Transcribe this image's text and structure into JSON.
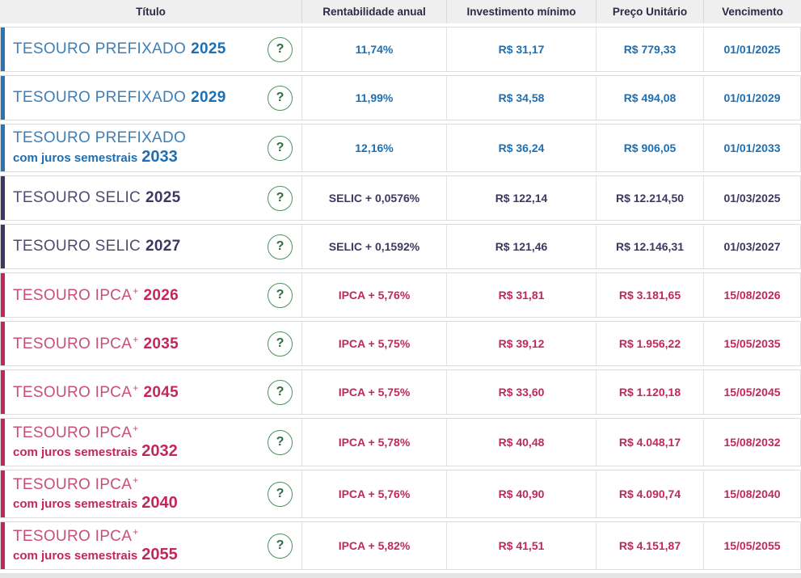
{
  "colors": {
    "prefixado": {
      "bar": "#2b74b4",
      "name": "#3c7fb9",
      "strong": "#1d6fb4"
    },
    "selic": {
      "bar": "#3d3862",
      "name": "#514b73",
      "strong": "#3d3862"
    },
    "ipca": {
      "bar": "#c2275c",
      "name": "#c94f77",
      "strong": "#c2275c"
    },
    "help_border": "#4f9060",
    "help_text": "#2c6e3f",
    "header_bg": "#efefef",
    "header_text": "#2b2b45"
  },
  "table": {
    "columns": [
      "Título",
      "Rentabilidade anual",
      "Investimento mínimo",
      "Preço Unitário",
      "Vencimento"
    ],
    "help_icon": "?",
    "rows": [
      {
        "family": "prefixado",
        "name": "TESOURO PREFIXADO",
        "sup": "",
        "subtitle": "",
        "year": "2025",
        "rate": "11,74%",
        "min_investment": "R$ 31,17",
        "unit_price": "R$ 779,33",
        "maturity": "01/01/2025"
      },
      {
        "family": "prefixado",
        "name": "TESOURO PREFIXADO",
        "sup": "",
        "subtitle": "",
        "year": "2029",
        "rate": "11,99%",
        "min_investment": "R$ 34,58",
        "unit_price": "R$ 494,08",
        "maturity": "01/01/2029"
      },
      {
        "family": "prefixado",
        "name": "TESOURO PREFIXADO",
        "sup": "",
        "subtitle": "com juros semestrais",
        "year": "2033",
        "rate": "12,16%",
        "min_investment": "R$ 36,24",
        "unit_price": "R$ 906,05",
        "maturity": "01/01/2033"
      },
      {
        "family": "selic",
        "name": "TESOURO SELIC",
        "sup": "",
        "subtitle": "",
        "year": "2025",
        "rate": "SELIC + 0,0576%",
        "min_investment": "R$ 122,14",
        "unit_price": "R$ 12.214,50",
        "maturity": "01/03/2025"
      },
      {
        "family": "selic",
        "name": "TESOURO SELIC",
        "sup": "",
        "subtitle": "",
        "year": "2027",
        "rate": "SELIC + 0,1592%",
        "min_investment": "R$ 121,46",
        "unit_price": "R$ 12.146,31",
        "maturity": "01/03/2027"
      },
      {
        "family": "ipca",
        "name": "TESOURO IPCA",
        "sup": "+",
        "subtitle": "",
        "year": "2026",
        "rate": "IPCA + 5,76%",
        "min_investment": "R$ 31,81",
        "unit_price": "R$ 3.181,65",
        "maturity": "15/08/2026"
      },
      {
        "family": "ipca",
        "name": "TESOURO IPCA",
        "sup": "+",
        "subtitle": "",
        "year": "2035",
        "rate": "IPCA + 5,75%",
        "min_investment": "R$ 39,12",
        "unit_price": "R$ 1.956,22",
        "maturity": "15/05/2035"
      },
      {
        "family": "ipca",
        "name": "TESOURO IPCA",
        "sup": "+",
        "subtitle": "",
        "year": "2045",
        "rate": "IPCA + 5,75%",
        "min_investment": "R$ 33,60",
        "unit_price": "R$ 1.120,18",
        "maturity": "15/05/2045"
      },
      {
        "family": "ipca",
        "name": "TESOURO IPCA",
        "sup": "+",
        "subtitle": "com juros semestrais",
        "year": "2032",
        "rate": "IPCA + 5,78%",
        "min_investment": "R$ 40,48",
        "unit_price": "R$ 4.048,17",
        "maturity": "15/08/2032"
      },
      {
        "family": "ipca",
        "name": "TESOURO IPCA",
        "sup": "+",
        "subtitle": "com juros semestrais",
        "year": "2040",
        "rate": "IPCA + 5,76%",
        "min_investment": "R$ 40,90",
        "unit_price": "R$ 4.090,74",
        "maturity": "15/08/2040"
      },
      {
        "family": "ipca",
        "name": "TESOURO IPCA",
        "sup": "+",
        "subtitle": "com juros semestrais",
        "year": "2055",
        "rate": "IPCA + 5,82%",
        "min_investment": "R$ 41,51",
        "unit_price": "R$ 4.151,87",
        "maturity": "15/05/2055"
      }
    ]
  }
}
